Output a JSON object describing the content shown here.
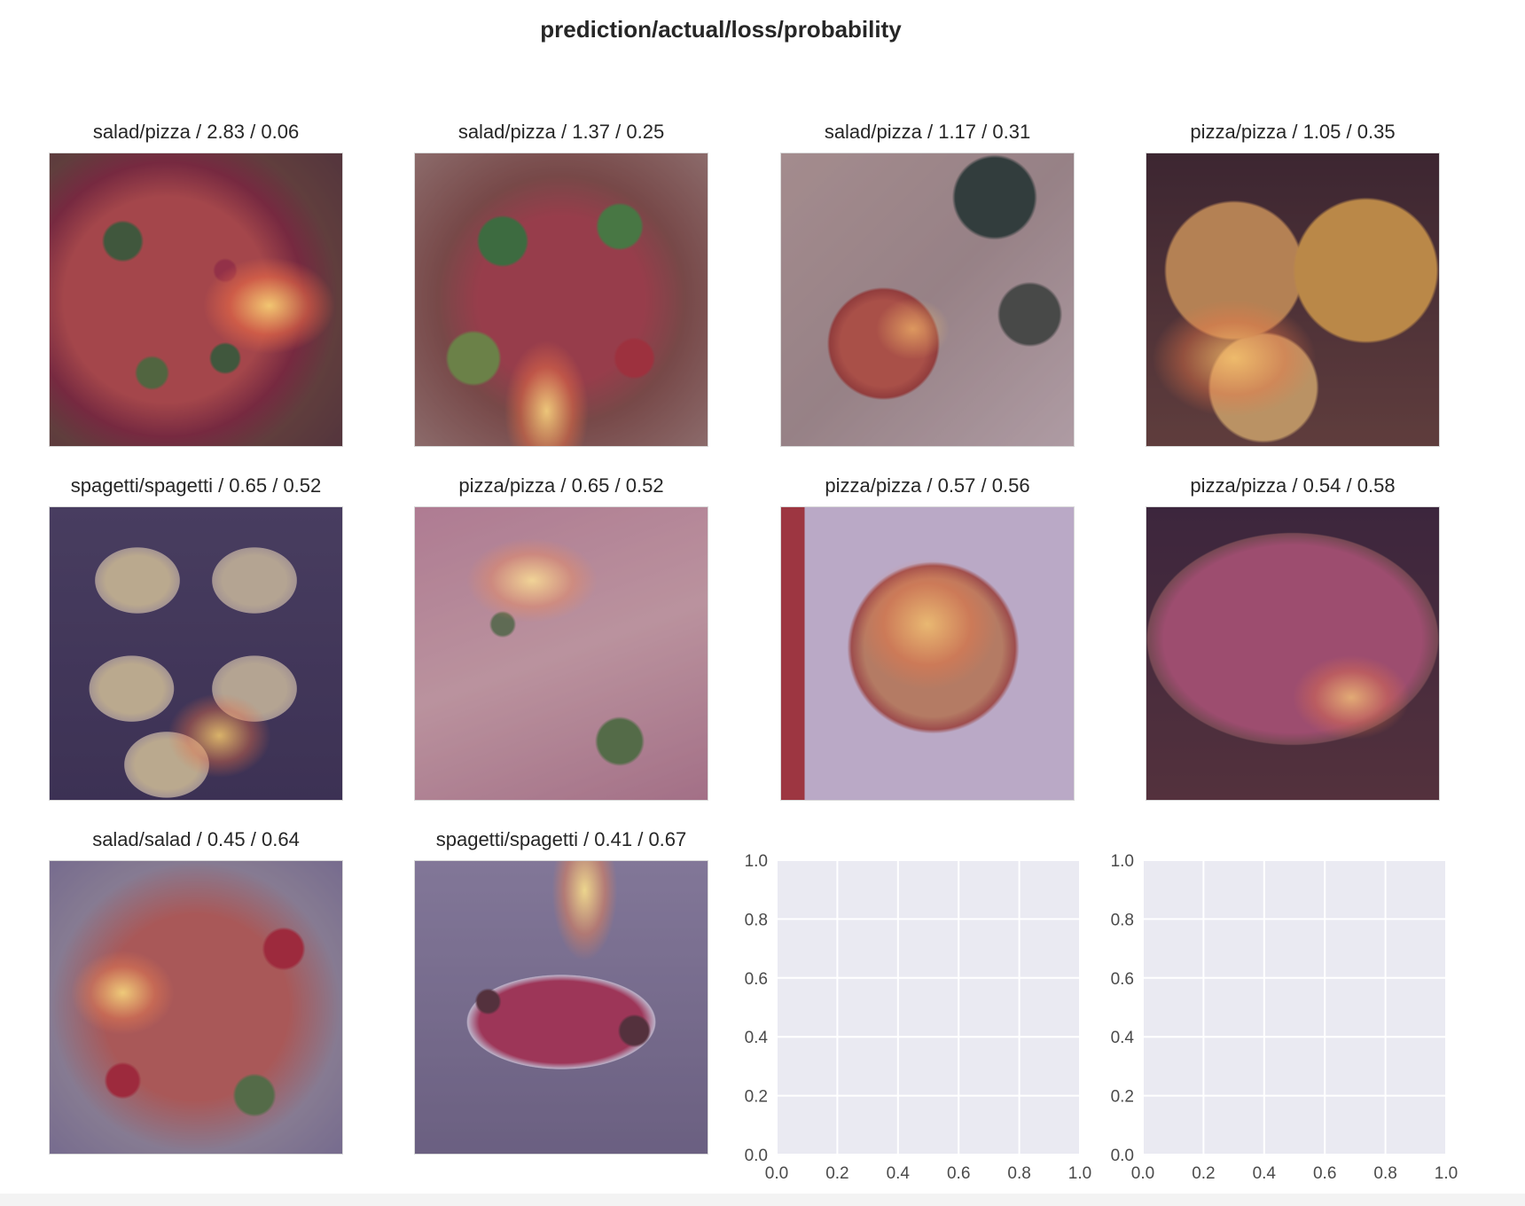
{
  "figure_title": "prediction/actual/loss/probability",
  "chart_data": [
    {
      "type": "heatmap",
      "panels": [
        {
          "title": "salad/pizza / 2.83 / 0.06",
          "prediction": "salad",
          "actual": "pizza",
          "loss": 2.83,
          "probability": 0.06,
          "icon": "pizza-photo-icon"
        },
        {
          "title": "salad/pizza / 1.37 / 0.25",
          "prediction": "salad",
          "actual": "pizza",
          "loss": 1.37,
          "probability": 0.25,
          "icon": "pizza-photo-icon"
        },
        {
          "title": "salad/pizza / 1.17 / 0.31",
          "prediction": "salad",
          "actual": "pizza",
          "loss": 1.17,
          "probability": 0.31,
          "icon": "food-spread-photo-icon"
        },
        {
          "title": "pizza/pizza / 1.05 / 0.35",
          "prediction": "pizza",
          "actual": "pizza",
          "loss": 1.05,
          "probability": 0.35,
          "icon": "mac-cheese-pizza-photo-icon"
        },
        {
          "title": "spagetti/spagetti / 0.65 / 0.52",
          "prediction": "spagetti",
          "actual": "spagetti",
          "loss": 0.65,
          "probability": 0.52,
          "icon": "spaghetti-squash-photo-icon"
        },
        {
          "title": "pizza/pizza / 0.65 / 0.52",
          "prediction": "pizza",
          "actual": "pizza",
          "loss": 0.65,
          "probability": 0.52,
          "icon": "pizza-photo-icon"
        },
        {
          "title": "pizza/pizza / 0.57 / 0.56",
          "prediction": "pizza",
          "actual": "pizza",
          "loss": 0.57,
          "probability": 0.56,
          "icon": "pizza-photo-icon"
        },
        {
          "title": "pizza/pizza / 0.54 / 0.58",
          "prediction": "pizza",
          "actual": "pizza",
          "loss": 0.54,
          "probability": 0.58,
          "icon": "pizza-photo-icon"
        },
        {
          "title": "salad/salad / 0.45 / 0.64",
          "prediction": "salad",
          "actual": "salad",
          "loss": 0.45,
          "probability": 0.64,
          "icon": "salad-photo-icon"
        },
        {
          "title": "spagetti/spagetti / 0.41 / 0.67",
          "prediction": "spagetti",
          "actual": "spagetti",
          "loss": 0.41,
          "probability": 0.67,
          "icon": "spaghetti-meatballs-photo-icon"
        }
      ]
    },
    {
      "type": "scatter",
      "series": [],
      "xlim": [
        0.0,
        1.0
      ],
      "ylim": [
        0.0,
        1.0
      ],
      "xticks": [
        "0.0",
        "0.2",
        "0.4",
        "0.6",
        "0.8",
        "1.0"
      ],
      "yticks": [
        "0.0",
        "0.2",
        "0.4",
        "0.6",
        "0.8",
        "1.0"
      ],
      "grid": true
    },
    {
      "type": "scatter",
      "series": [],
      "xlim": [
        0.0,
        1.0
      ],
      "ylim": [
        0.0,
        1.0
      ],
      "xticks": [
        "0.0",
        "0.2",
        "0.4",
        "0.6",
        "0.8",
        "1.0"
      ],
      "yticks": [
        "0.0",
        "0.2",
        "0.4",
        "0.6",
        "0.8",
        "1.0"
      ],
      "grid": true
    }
  ],
  "colors": {
    "axes_background": "#eaeaf2",
    "grid": "#ffffff",
    "heat_low": "#2c0b55",
    "heat_high": "#fde68a"
  }
}
